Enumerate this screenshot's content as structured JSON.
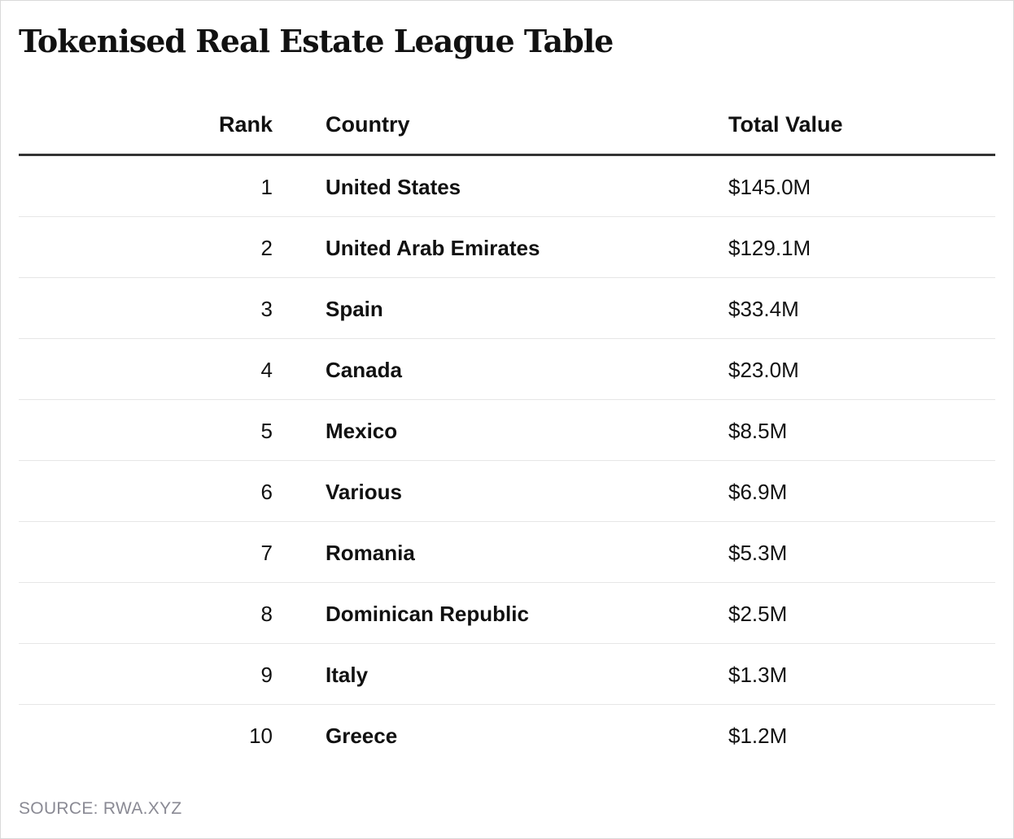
{
  "chart_data": {
    "type": "table",
    "title": "Tokenised Real Estate League Table",
    "columns": [
      "Rank",
      "Country",
      "Total Value"
    ],
    "rows": [
      {
        "rank": "1",
        "country": "United States",
        "value": "$145.0M"
      },
      {
        "rank": "2",
        "country": "United Arab Emirates",
        "value": "$129.1M"
      },
      {
        "rank": "3",
        "country": "Spain",
        "value": "$33.4M"
      },
      {
        "rank": "4",
        "country": "Canada",
        "value": "$23.0M"
      },
      {
        "rank": "5",
        "country": "Mexico",
        "value": "$8.5M"
      },
      {
        "rank": "6",
        "country": "Various",
        "value": "$6.9M"
      },
      {
        "rank": "7",
        "country": "Romania",
        "value": "$5.3M"
      },
      {
        "rank": "8",
        "country": "Dominican Republic",
        "value": "$2.5M"
      },
      {
        "rank": "9",
        "country": "Italy",
        "value": "$1.3M"
      },
      {
        "rank": "10",
        "country": "Greece",
        "value": "$1.2M"
      }
    ],
    "source": "SOURCE: RWA.XYZ"
  },
  "colors": {
    "text": "#111111",
    "header_rule": "#333333",
    "row_rule": "#e6e6e6",
    "source_text": "#8a8a94",
    "frame_border": "#d9d9d9"
  }
}
